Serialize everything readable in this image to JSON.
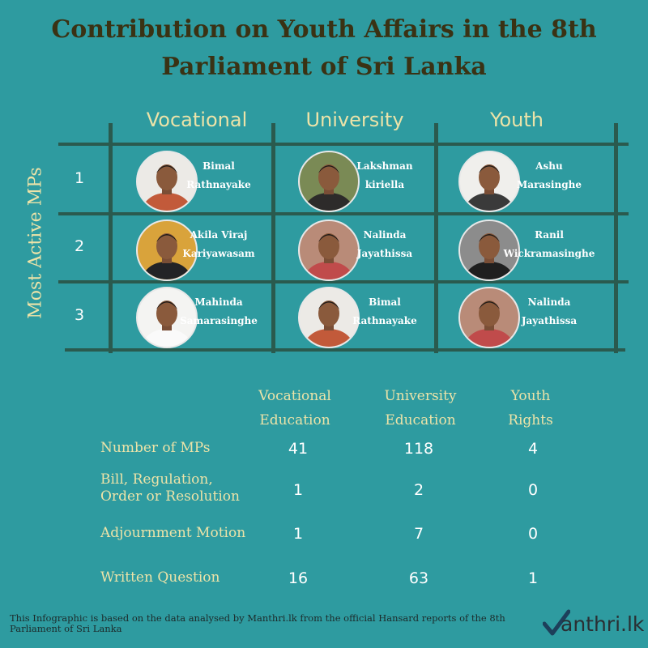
{
  "title": {
    "line1": "Contribution on Youth Affairs in the 8th",
    "line2": "Parliament of Sri Lanka"
  },
  "grid": {
    "columns": [
      "Vocational",
      "University",
      "Youth"
    ],
    "row_axis_label": "Most Active MPs",
    "rows": [
      {
        "rank": "1",
        "mps": [
          {
            "line1": "Bimal",
            "line2": "Rathnayake",
            "photo_bg": "#eceae6",
            "shirt": "#c25a3a"
          },
          {
            "line1": "Lakshman",
            "line2": "kiriella",
            "photo_bg": "#7a8a55",
            "shirt": "#2d2b2a"
          },
          {
            "line1": "Ashu",
            "line2": "Marasinghe",
            "photo_bg": "#f0efec",
            "shirt": "#3a3a3a"
          }
        ]
      },
      {
        "rank": "2",
        "mps": [
          {
            "line1": "Akila Viraj",
            "line2": "Kariyawasam",
            "photo_bg": "#d9a33b",
            "shirt": "#232326"
          },
          {
            "line1": "Nalinda",
            "line2": "Jayathissa",
            "photo_bg": "#b98b78",
            "shirt": "#c04b4b"
          },
          {
            "line1": "Ranil",
            "line2": "Wickramasinghe",
            "photo_bg": "#8c8c8c",
            "shirt": "#1f1f1f"
          }
        ]
      },
      {
        "rank": "3",
        "mps": [
          {
            "line1": "Mahinda",
            "line2": "Samarasinghe",
            "photo_bg": "#f4f4f2",
            "shirt": "#fafafa"
          },
          {
            "line1": "Bimal",
            "line2": "Rathnayake",
            "photo_bg": "#eceae6",
            "shirt": "#c25a3a"
          },
          {
            "line1": "Nalinda",
            "line2": "Jayathissa",
            "photo_bg": "#b98b78",
            "shirt": "#c04b4b"
          }
        ]
      }
    ]
  },
  "stats": {
    "headers": [
      {
        "line1": "Vocational",
        "line2": "Education"
      },
      {
        "line1": "University",
        "line2": "Education"
      },
      {
        "line1": "Youth",
        "line2": "Rights"
      }
    ],
    "rows": [
      {
        "line1": "Number of MPs",
        "line2": "",
        "values": [
          "41",
          "118",
          "4"
        ]
      },
      {
        "line1": "Bill, Regulation,",
        "line2": "Order or Resolution",
        "values": [
          "1",
          "2",
          "0"
        ]
      },
      {
        "line1": "Adjournment Motion",
        "line2": "",
        "values": [
          "1",
          "7",
          "0"
        ]
      },
      {
        "line1": "Written Question",
        "line2": "",
        "values": [
          "16",
          "63",
          "1"
        ]
      }
    ]
  },
  "footer": {
    "text": "This Infographic is based on the data analysed by Manthri.lk from the official Hansard reports of the 8th Parliament of Sri Lanka"
  },
  "logo": {
    "text": "anthri.lk",
    "icon": "check-mark-icon"
  },
  "colors": {
    "background": "#2e9ba0",
    "title": "#3a3214",
    "accent_text": "#ece3a8",
    "grid_lines": "#2a5a4e"
  }
}
